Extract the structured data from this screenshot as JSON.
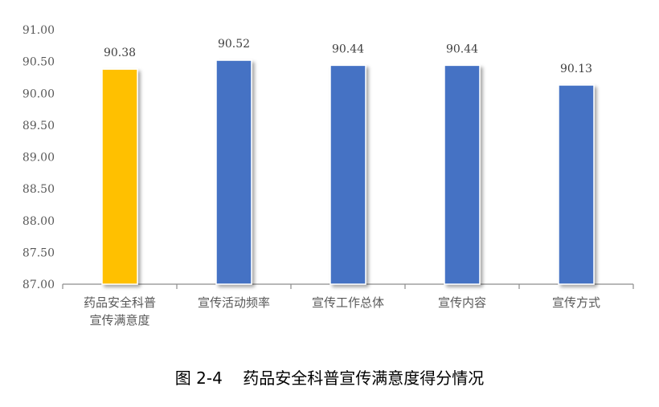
{
  "caption": "图 2-4    药品安全科普宣传满意度得分情况",
  "chart_data": {
    "type": "bar",
    "categories": [
      "药品安全科普\n宣传满意度",
      "宣传活动频率",
      "宣传工作总体",
      "宣传内容",
      "宣传方式"
    ],
    "values": [
      90.38,
      90.52,
      90.44,
      90.44,
      90.13
    ],
    "value_labels": [
      "90.38",
      "90.52",
      "90.44",
      "90.44",
      "90.13"
    ],
    "bar_colors": [
      "#FFC000",
      "#4472C4",
      "#4472C4",
      "#4472C4",
      "#4472C4"
    ],
    "ylim": [
      87.0,
      91.0
    ],
    "yticks": [
      "87.00",
      "87.50",
      "88.00",
      "88.50",
      "89.00",
      "89.50",
      "90.00",
      "90.50",
      "91.00"
    ],
    "grid": false,
    "legend": "none"
  }
}
